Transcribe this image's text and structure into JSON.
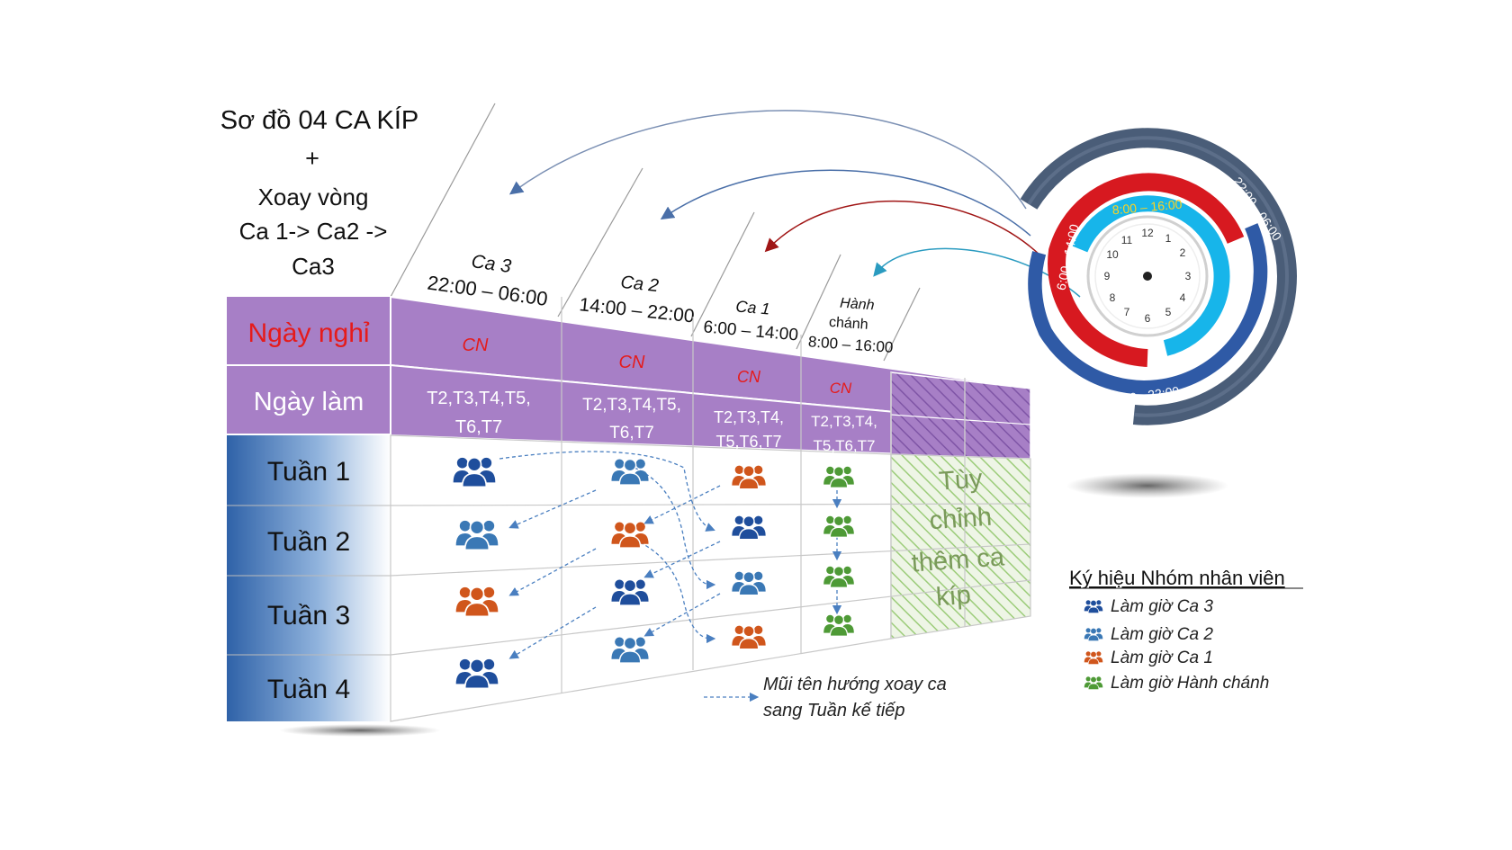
{
  "title": {
    "line1": "Sơ đồ 04 CA KÍP",
    "line2": "+",
    "line3": "Xoay vòng",
    "line4": "Ca 1-> Ca2 ->",
    "line5": "Ca3"
  },
  "row_labels": {
    "off_day": "Ngày nghỉ",
    "work_day": "Ngày làm",
    "weeks": [
      "Tuần 1",
      "Tuần 2",
      "Tuần 3",
      "Tuần 4"
    ]
  },
  "shifts": [
    {
      "name": "Ca 3",
      "time": "22:00 – 06:00",
      "off": "CN",
      "work1": "T2,T3,T4,T5,",
      "work2": "T6,T7"
    },
    {
      "name": "Ca 2",
      "time": "14:00 – 22:00",
      "off": "CN",
      "work1": "T2,T3,T4,T5,",
      "work2": "T6,T7"
    },
    {
      "name": "Ca 1",
      "time": "6:00 – 14:00",
      "off": "CN",
      "work1": "T2,T3,T4,",
      "work2": "T5,T6,T7"
    },
    {
      "name": "Hành",
      "name2": "chánh",
      "time": "8:00 – 16:00",
      "off": "CN",
      "work1": "T2,T3,T4,",
      "work2": "T5,T6,T7"
    }
  ],
  "custom_column": {
    "line1": "Tùy",
    "line2": "chỉnh",
    "line3": "thêm ca",
    "line4": "kíp"
  },
  "clock": {
    "ring_outer": "22:00 - 06:00",
    "ring_mid": "14:00 - 22:00",
    "ring_red": "6:00 - 14:00",
    "ring_cyan": "8:00 – 16:00",
    "numbers": [
      "12",
      "1",
      "2",
      "3",
      "4",
      "5",
      "6",
      "7",
      "8",
      "9",
      "10",
      "11"
    ]
  },
  "legend": {
    "title": "Ký hiệu Nhóm nhân viên",
    "items": [
      {
        "label": "Làm giờ Ca 3",
        "color": "#1f4e9c"
      },
      {
        "label": "Làm giờ Ca 2",
        "color": "#3a78b5"
      },
      {
        "label": "Làm giờ Ca 1",
        "color": "#d0561c"
      },
      {
        "label": "Làm giờ Hành chánh",
        "color": "#4e9a36"
      }
    ]
  },
  "arrow_note": {
    "line1": "Mũi tên hướng xoay ca",
    "line2": "sang Tuần kế tiếp"
  },
  "colors": {
    "purple": "#a77fc6",
    "red_text": "#e51b1b",
    "blue_dark": "#2f62a8",
    "ca3": "#1f4e9c",
    "ca2": "#3a78b5",
    "ca1": "#d0561c",
    "hc": "#4e9a36",
    "ring_outer": "#4a5d78",
    "ring_mid": "#2f5aa6",
    "ring_red": "#d71920",
    "ring_cyan": "#17b5ea"
  },
  "icons": {
    "people": "people-group-icon",
    "clock": "clock-icon"
  }
}
